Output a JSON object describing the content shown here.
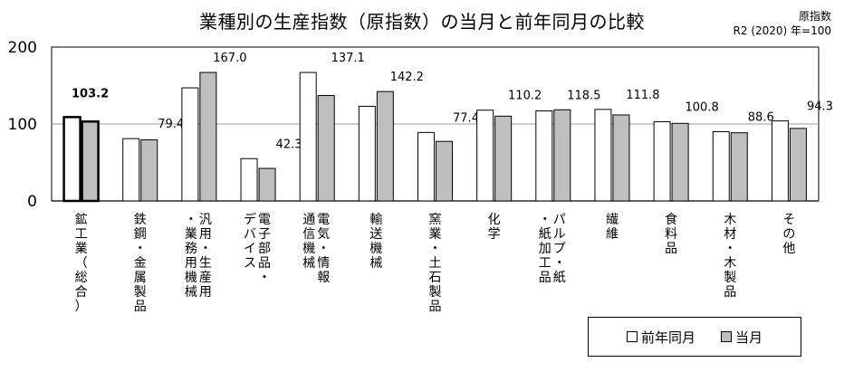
{
  "chart_data": {
    "type": "bar",
    "title": "業種別の生産指数（原指数）の当月と前年同月の比較",
    "subtitle_lines": [
      "原指数",
      "R2 (2020) 年=100"
    ],
    "categories": [
      "鉱工業（総合）",
      "鉄鋼・金属製品",
      "汎用・生産用・業務用機械",
      "電子部品・デバイス",
      "電気・情報通信機械",
      "輸送機械",
      "窯業・土石製品",
      "化学",
      "パルプ・紙・紙加工品",
      "繊維",
      "食料品",
      "木材・木製品",
      "その他"
    ],
    "series": [
      {
        "name": "前年同月",
        "color": "#ffffff",
        "values": [
          109.0,
          81.0,
          147.0,
          55.0,
          167.0,
          123.0,
          89.0,
          118.0,
          117.0,
          119.0,
          103.0,
          90.0,
          104.0
        ]
      },
      {
        "name": "当月",
        "color": "#bfbfbf",
        "values": [
          103.2,
          79.4,
          167.0,
          42.3,
          137.1,
          142.2,
          77.4,
          110.2,
          118.5,
          111.8,
          100.8,
          88.6,
          94.3
        ],
        "labels": [
          "103.2",
          "79.4",
          "167.0",
          "42.3",
          "137.1",
          "142.2",
          "77.4",
          "110.2",
          "118.5",
          "111.8",
          "100.8",
          "88.6",
          "94.3"
        ]
      }
    ],
    "ylim": [
      0,
      200
    ],
    "yticks": [
      0,
      100,
      200
    ],
    "grid": true,
    "legend": "bottom-right"
  }
}
